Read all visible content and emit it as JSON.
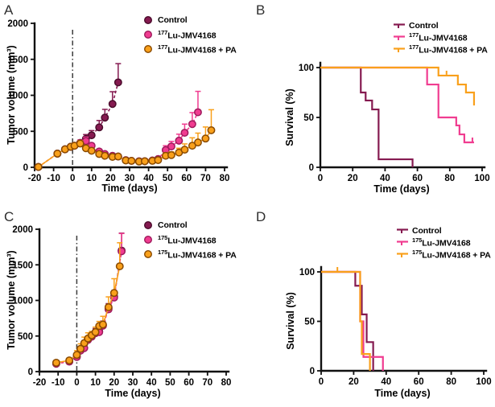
{
  "colors": {
    "control": {
      "fill": "#851a50",
      "stroke": "#4b0c2c"
    },
    "lu": {
      "fill": "#f03c90",
      "stroke": "#9e1a5c"
    },
    "lupa": {
      "fill": "#f9a01b",
      "stroke": "#8a4a00"
    }
  },
  "chart_data": [
    {
      "letter": "A",
      "kind": "tumor",
      "type": "scatter",
      "xlabel": "Time (days)",
      "ylabel": "Tumor volume (mm³)",
      "xlim": [
        -20,
        80
      ],
      "ylim": [
        0,
        2000
      ],
      "xticks": [
        -20,
        -10,
        0,
        10,
        20,
        30,
        40,
        50,
        60,
        70,
        80
      ],
      "yticks": [
        0,
        500,
        1000,
        1500,
        2000
      ],
      "treatment_line_x": 0,
      "legend": [
        {
          "sup": "",
          "text": "Control",
          "color": "control"
        },
        {
          "sup": "177",
          "text": "Lu-JMV4168",
          "color": "lu"
        },
        {
          "sup": "177",
          "text": "Lu-JMV4168 + PA",
          "color": "lupa"
        }
      ],
      "series": [
        {
          "name": "Control",
          "color": "control",
          "dash": true,
          "x": [
            -18,
            -8,
            -4,
            -1,
            1,
            4,
            7,
            10,
            14,
            17,
            21,
            24
          ],
          "y": [
            5,
            190,
            250,
            285,
            300,
            335,
            395,
            445,
            555,
            690,
            880,
            1180
          ],
          "err": [
            0,
            0,
            0,
            0,
            30,
            40,
            60,
            65,
            95,
            115,
            170,
            260
          ]
        },
        {
          "name": "177Lu-JMV4168",
          "color": "lu",
          "dash": true,
          "x": [
            -18,
            -8,
            -4,
            -1,
            1,
            4,
            7,
            10,
            14,
            17,
            21,
            24,
            28,
            31,
            35,
            38,
            42,
            45,
            49,
            52,
            56,
            59,
            63,
            66
          ],
          "y": [
            5,
            190,
            250,
            285,
            300,
            340,
            365,
            300,
            220,
            185,
            160,
            150,
            100,
            90,
            85,
            85,
            95,
            115,
            240,
            290,
            370,
            480,
            600,
            765
          ],
          "err": [
            0,
            0,
            0,
            0,
            30,
            40,
            55,
            0,
            0,
            0,
            0,
            0,
            0,
            0,
            0,
            0,
            0,
            0,
            60,
            70,
            90,
            120,
            160,
            290
          ]
        },
        {
          "name": "177Lu-JMV4168 + PA",
          "color": "lupa",
          "dash": false,
          "x": [
            -18,
            -8,
            -4,
            -1,
            1,
            4,
            7,
            10,
            14,
            17,
            21,
            24,
            28,
            31,
            35,
            38,
            42,
            45,
            49,
            52,
            56,
            59,
            63,
            66,
            70,
            73
          ],
          "y": [
            5,
            190,
            250,
            285,
            300,
            330,
            265,
            230,
            185,
            160,
            145,
            150,
            95,
            90,
            80,
            85,
            90,
            100,
            160,
            170,
            205,
            245,
            300,
            345,
            400,
            515
          ],
          "err": [
            0,
            25,
            25,
            30,
            35,
            40,
            40,
            35,
            25,
            20,
            20,
            25,
            15,
            15,
            12,
            12,
            15,
            20,
            40,
            45,
            60,
            80,
            110,
            130,
            160,
            285
          ]
        }
      ]
    },
    {
      "letter": "B",
      "kind": "survival",
      "type": "line",
      "xlabel": "Time (days)",
      "ylabel": "Survival (%)",
      "xlim": [
        0,
        100
      ],
      "ylim": [
        0,
        100
      ],
      "xticks": [
        0,
        20,
        40,
        60,
        80,
        100
      ],
      "yticks": [
        0,
        50,
        100
      ],
      "legend": [
        {
          "sup": "",
          "text": "Control",
          "color": "control"
        },
        {
          "sup": "177",
          "text": "Lu-JMV4168",
          "color": "lu"
        },
        {
          "sup": "177",
          "text": "Lu-JMV4168 + PA",
          "color": "lupa"
        }
      ],
      "series": [
        {
          "name": "Control",
          "color": "control",
          "steps": [
            [
              0,
              100
            ],
            [
              25,
              100
            ],
            [
              25,
              75
            ],
            [
              28,
              75
            ],
            [
              28,
              67
            ],
            [
              32,
              67
            ],
            [
              32,
              58
            ],
            [
              36,
              58
            ],
            [
              36,
              8
            ],
            [
              57,
              8
            ],
            [
              57,
              0
            ]
          ],
          "censors": []
        },
        {
          "name": "177Lu-JMV4168",
          "color": "lu",
          "steps": [
            [
              0,
              100
            ],
            [
              66,
              100
            ],
            [
              66,
              83
            ],
            [
              73,
              83
            ],
            [
              73,
              50
            ],
            [
              84,
              50
            ],
            [
              84,
              42
            ],
            [
              86,
              42
            ],
            [
              86,
              33
            ],
            [
              89,
              33
            ],
            [
              89,
              25
            ],
            [
              95,
              25
            ]
          ],
          "censors": [
            [
              94,
              25
            ]
          ]
        },
        {
          "name": "177Lu-JMV4168 + PA",
          "color": "lupa",
          "steps": [
            [
              0,
              100
            ],
            [
              73,
              100
            ],
            [
              73,
              92
            ],
            [
              85,
              92
            ],
            [
              85,
              83
            ],
            [
              90,
              83
            ],
            [
              90,
              75
            ],
            [
              95,
              75
            ],
            [
              95,
              62
            ]
          ],
          "censors": [
            [
              78,
              92
            ]
          ]
        }
      ]
    },
    {
      "letter": "C",
      "kind": "tumor",
      "type": "scatter",
      "xlabel": "Time (days)",
      "ylabel": "Tumor volume (mm³)",
      "xlim": [
        -20,
        80
      ],
      "ylim": [
        0,
        2000
      ],
      "xticks": [
        -20,
        -10,
        0,
        10,
        20,
        30,
        40,
        50,
        60,
        70,
        80
      ],
      "yticks": [
        0,
        500,
        1000,
        1500,
        2000
      ],
      "treatment_line_x": 0,
      "legend": [
        {
          "sup": "",
          "text": "Control",
          "color": "control"
        },
        {
          "sup": "175",
          "text": "Lu-JMV4168",
          "color": "lu"
        },
        {
          "sup": "175",
          "text": "Lu-JMV4168 + PA",
          "color": "lupa"
        }
      ],
      "series": [
        {
          "name": "Control",
          "color": "control",
          "dash": true,
          "x": [
            -11,
            -4,
            0,
            2,
            4,
            6,
            8,
            10,
            12,
            14,
            17,
            20,
            24
          ],
          "y": [
            115,
            145,
            210,
            305,
            395,
            455,
            500,
            550,
            565,
            655,
            890,
            1055,
            1700
          ],
          "err": [
            15,
            15,
            25,
            35,
            40,
            45,
            40,
            55,
            45,
            55,
            65,
            85,
            245
          ]
        },
        {
          "name": "175Lu-JMV4168",
          "color": "lu",
          "dash": true,
          "x": [
            -11,
            -4,
            0,
            2,
            4,
            6,
            8,
            10,
            12,
            14,
            17,
            20,
            24
          ],
          "y": [
            110,
            140,
            205,
            295,
            330,
            445,
            490,
            540,
            555,
            645,
            875,
            1040,
            1690
          ],
          "err": [
            15,
            15,
            25,
            30,
            35,
            40,
            40,
            50,
            45,
            55,
            65,
            85,
            250
          ]
        },
        {
          "name": "175Lu-JMV4168 + PA",
          "color": "lupa",
          "dash": false,
          "x": [
            -11,
            -4,
            0,
            2,
            4,
            6,
            8,
            10,
            12,
            14,
            17,
            20,
            23
          ],
          "y": [
            125,
            158,
            235,
            320,
            400,
            465,
            510,
            555,
            640,
            662,
            905,
            1105,
            1480
          ],
          "err": [
            25,
            28,
            60,
            70,
            85,
            80,
            55,
            70,
            65,
            115,
            145,
            200,
            330
          ]
        }
      ]
    },
    {
      "letter": "D",
      "kind": "survival",
      "type": "line",
      "xlabel": "Time (days)",
      "ylabel": "Survival (%)",
      "xlim": [
        0,
        100
      ],
      "ylim": [
        0,
        100
      ],
      "xticks": [
        0,
        20,
        40,
        60,
        80,
        100
      ],
      "yticks": [
        0,
        50,
        100
      ],
      "legend": [
        {
          "sup": "",
          "text": "Control",
          "color": "control"
        },
        {
          "sup": "175",
          "text": "Lu-JMV4168",
          "color": "lu"
        },
        {
          "sup": "175",
          "text": "Lu-JMV4168 + PA",
          "color": "lupa"
        }
      ],
      "series": [
        {
          "name": "Control",
          "color": "control",
          "steps": [
            [
              0,
              100
            ],
            [
              21,
              100
            ],
            [
              21,
              86
            ],
            [
              25,
              86
            ],
            [
              25,
              57
            ],
            [
              28,
              57
            ],
            [
              28,
              29
            ],
            [
              32,
              29
            ],
            [
              32,
              0
            ]
          ],
          "censors": []
        },
        {
          "name": "175Lu-JMV4168",
          "color": "lu",
          "steps": [
            [
              0,
              100
            ],
            [
              24,
              100
            ],
            [
              24,
              50
            ],
            [
              26,
              50
            ],
            [
              26,
              14
            ],
            [
              38,
              14
            ],
            [
              38,
              0
            ]
          ],
          "censors": []
        },
        {
          "name": "175Lu-JMV4168 + PA",
          "color": "lupa",
          "steps": [
            [
              0,
              100
            ],
            [
              24,
              100
            ],
            [
              24,
              50
            ],
            [
              25,
              50
            ],
            [
              25,
              17
            ],
            [
              30,
              17
            ],
            [
              30,
              0
            ]
          ],
          "censors": [
            [
              10,
              100
            ]
          ]
        }
      ]
    }
  ]
}
